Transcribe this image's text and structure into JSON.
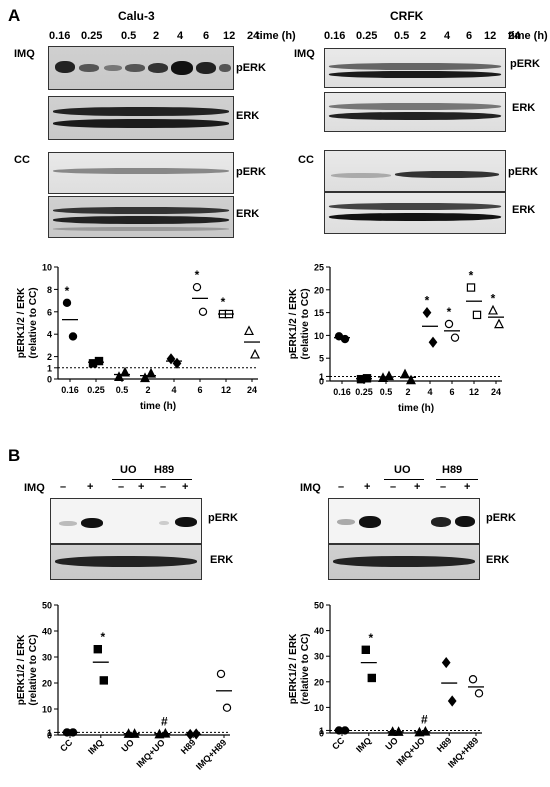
{
  "panelA": {
    "letter": "A",
    "calu": {
      "title": "Calu-3",
      "times": [
        "0.16",
        "0.25",
        "0.5",
        "2",
        "4",
        "6",
        "12",
        "24"
      ],
      "time_unit": "time (h)",
      "imq": "IMQ",
      "cc": "CC",
      "perk": "pERK",
      "erk": "ERK"
    },
    "crfk": {
      "title": "CRFK",
      "times": [
        "0.16",
        "0.25",
        "0.5",
        "2",
        "4",
        "6",
        "12",
        "24"
      ],
      "time_unit": "time (h)",
      "imq": "IMQ",
      "cc": "CC",
      "perk": "pERK",
      "erk": "ERK"
    }
  },
  "panelB": {
    "letter": "B",
    "imq": "IMQ",
    "uo": "UO",
    "h89": "H89",
    "signs": [
      "–",
      "+",
      "–",
      "+",
      "–",
      "+"
    ],
    "perk": "pERK",
    "erk": "ERK"
  },
  "chart_data": [
    {
      "type": "scatter",
      "ylabel": "pERK1/2 / ERK (relative to CC)",
      "xlabel": "time (h)",
      "categories": [
        "0.16",
        "0.25",
        "0.5",
        "2",
        "4",
        "6",
        "12",
        "24"
      ],
      "ylim": [
        0,
        10
      ],
      "yticks": [
        0,
        1,
        2,
        4,
        6,
        8,
        10
      ],
      "reference_line": 1,
      "series": [
        {
          "marker": "filled-circle",
          "values": [
            [
              6.8,
              3.8
            ]
          ],
          "category": 0
        },
        {
          "marker": "filled-square",
          "values": [
            [
              1.4,
              1.6
            ]
          ],
          "category": 1
        },
        {
          "marker": "filled-triangle",
          "values": [
            [
              0.2,
              0.6
            ]
          ],
          "category": 2
        },
        {
          "marker": "filled-triangle",
          "values": [
            [
              0.1,
              0.5
            ]
          ],
          "category": 3
        },
        {
          "marker": "filled-diamond",
          "values": [
            [
              1.8,
              1.4
            ]
          ],
          "category": 4
        },
        {
          "marker": "open-circle",
          "values": [
            [
              8.2,
              6.0
            ]
          ],
          "category": 5
        },
        {
          "marker": "open-square",
          "values": [
            [
              5.8,
              5.8
            ]
          ],
          "category": 6
        },
        {
          "marker": "open-triangle",
          "values": [
            [
              4.3,
              2.2
            ]
          ],
          "category": 7
        }
      ],
      "means": [
        5.3,
        1.5,
        0.4,
        0.3,
        1.6,
        7.2,
        5.8,
        3.3
      ],
      "significant": [
        "0.16",
        "6",
        "12"
      ]
    },
    {
      "type": "scatter",
      "ylabel": "pERK1/2 / ERK (relative to CC)",
      "xlabel": "time (h)",
      "categories": [
        "0.16",
        "0.25",
        "0.5",
        "2",
        "4",
        "6",
        "12",
        "24"
      ],
      "ylim": [
        0,
        25
      ],
      "yticks": [
        0,
        1,
        5,
        10,
        15,
        20,
        25
      ],
      "reference_line": 1,
      "means": [
        9.5,
        0.5,
        0.9,
        0.8,
        12.0,
        11.0,
        17.5,
        14.0
      ],
      "points": [
        [
          9.8,
          9.2
        ],
        [
          0.4,
          0.6
        ],
        [
          0.7,
          1.1
        ],
        [
          1.5,
          0.2
        ],
        [
          15,
          8.5
        ],
        [
          12.5,
          9.5
        ],
        [
          20.5,
          14.5
        ],
        [
          15.5,
          12.5
        ]
      ],
      "markers": [
        "filled-circle",
        "filled-square",
        "filled-triangle",
        "filled-triangle",
        "filled-diamond",
        "open-circle",
        "open-square",
        "open-triangle"
      ],
      "significant": [
        "4",
        "6",
        "12",
        "24"
      ]
    },
    {
      "type": "scatter",
      "ylabel": "pERK1/2 / ERK (relative to CC)",
      "categories": [
        "CC",
        "IMQ",
        "UO",
        "IMQ+UO",
        "H89",
        "IMQ+H89"
      ],
      "ylim": [
        0,
        50
      ],
      "yticks": [
        0,
        1,
        10,
        20,
        30,
        40,
        50
      ],
      "reference_line": 1,
      "points": [
        [
          1,
          1
        ],
        [
          33,
          21
        ],
        [
          0.5,
          0.5
        ],
        [
          0.3,
          0.6
        ],
        [
          0.2,
          0.4
        ],
        [
          23.5,
          10.5
        ]
      ],
      "means": [
        1,
        28,
        0.5,
        0.5,
        0.3,
        17
      ],
      "markers": [
        "filled-circle",
        "filled-square",
        "filled-triangle",
        "filled-triangle",
        "filled-diamond",
        "open-circle"
      ],
      "annotations": {
        "IMQ": "*",
        "IMQ+UO": "#"
      }
    },
    {
      "type": "scatter",
      "ylabel": "pERK1/2 / ERK (relative to CC)",
      "categories": [
        "CC",
        "IMQ",
        "UO",
        "IMQ+UO",
        "H89",
        "IMQ+H89"
      ],
      "ylim": [
        0,
        50
      ],
      "yticks": [
        0,
        1,
        10,
        20,
        30,
        40,
        50
      ],
      "reference_line": 1,
      "points": [
        [
          1,
          1
        ],
        [
          32.5,
          21.5
        ],
        [
          0.5,
          0.5
        ],
        [
          0.3,
          0.6
        ],
        [
          27.5,
          12.5
        ],
        [
          21,
          15.5
        ]
      ],
      "means": [
        1,
        27.5,
        0.5,
        0.5,
        19.5,
        18
      ],
      "markers": [
        "filled-circle",
        "filled-square",
        "filled-triangle",
        "filled-triangle",
        "filled-diamond",
        "open-circle"
      ],
      "annotations": {
        "IMQ": "*",
        "IMQ+UO": "#"
      }
    }
  ]
}
